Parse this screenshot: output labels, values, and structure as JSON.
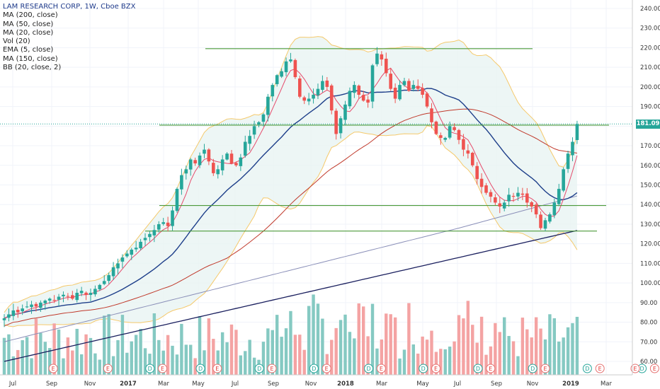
{
  "legend": {
    "title": "LAM RESEARCH CORP, 1W, Cboe BZX",
    "lines": [
      "MA (200, close)",
      "MA (50, close)",
      "MA (20, close)",
      "Vol (20)",
      "EMA (5, close)",
      "MA (150, close)",
      "BB (20, close, 2)"
    ]
  },
  "last_price_label": "181.09",
  "colors": {
    "up": "#26a69a",
    "down": "#ef5350",
    "up_vol": "#85c9c2",
    "down_vol": "#f4a3a3",
    "bb": "#f5c96b",
    "bb_fill": "#e8f4f2",
    "ma20": "#1e3f8a",
    "ma50": "#c0392b",
    "ma150": "#8a8fb8",
    "ma200": "#1a1f5e",
    "ema5": "#e64a6b",
    "hline": "#4c9a3a",
    "price_line": "#26a69a"
  },
  "chart_data": {
    "type": "candlestick",
    "title": "LAM RESEARCH CORP, 1W, Cboe BZX",
    "x_tick_labels": [
      "Jul",
      "Sep",
      "Nov",
      "2017",
      "Mar",
      "May",
      "Jul",
      "Sep",
      "Nov",
      "2018",
      "Mar",
      "May",
      "Jul",
      "Sep",
      "Nov",
      "2019",
      "Mar"
    ],
    "y_ticks": [
      60,
      70,
      80,
      90,
      100,
      110,
      120,
      130,
      140,
      150,
      160,
      170,
      180,
      190,
      200,
      210,
      220,
      230,
      240
    ],
    "y_tick_labels": [
      "60.00",
      "70.00",
      "80.00",
      "90.00",
      "100.00",
      "110.00",
      "120.00",
      "130.00",
      "140.00",
      "150.00",
      "160.00",
      "170.00",
      "180.00",
      "190.00",
      "200.00",
      "210.00",
      "220.00",
      "230.00",
      "240.00"
    ],
    "ylim": [
      56,
      242
    ],
    "last_price": 181.09,
    "horizontal_lines": [
      219.5,
      180.5,
      139.5,
      126.5
    ],
    "event_markers": [
      {
        "label": "E",
        "week": 6
      },
      {
        "label": "E",
        "week": 19
      },
      {
        "label": "D",
        "week": 29
      },
      {
        "label": "E",
        "week": 32
      },
      {
        "label": "D",
        "week": 41
      },
      {
        "label": "E",
        "week": 45
      },
      {
        "label": "D",
        "week": 55
      },
      {
        "label": "E",
        "week": 58
      },
      {
        "label": "D",
        "week": 68
      },
      {
        "label": "E",
        "week": 71
      },
      {
        "label": "D",
        "week": 81
      },
      {
        "label": "E",
        "week": 84
      },
      {
        "label": "D",
        "week": 94
      },
      {
        "label": "E",
        "week": 97
      },
      {
        "label": "D",
        "week": 107
      },
      {
        "label": "E",
        "week": 110
      },
      {
        "label": "D",
        "week": 120
      },
      {
        "label": "E",
        "week": 123
      },
      {
        "label": "D",
        "week": 133
      },
      {
        "label": "E",
        "week": 136
      },
      {
        "label": "D",
        "week": 146
      },
      {
        "label": "E",
        "week": 149
      },
      {
        "label": "E",
        "week": 162
      }
    ],
    "ohlc_close": [
      82,
      84,
      86,
      85,
      87,
      88,
      89,
      88,
      90,
      91,
      92,
      91,
      93,
      94,
      93,
      92,
      95,
      96,
      94,
      95,
      97,
      99,
      101,
      104,
      108,
      110,
      113,
      115,
      117,
      118,
      121,
      123,
      125,
      127,
      130,
      131,
      129,
      137,
      148,
      155,
      158,
      163,
      161,
      165,
      168,
      162,
      156,
      158,
      163,
      166,
      161,
      160,
      164,
      172,
      175,
      180,
      182,
      186,
      195,
      201,
      206,
      208,
      213,
      214,
      205,
      195,
      193,
      194,
      196,
      199,
      203,
      200,
      188,
      176,
      184,
      191,
      198,
      201,
      196,
      193,
      192,
      211,
      217,
      214,
      207,
      199,
      194,
      201,
      203,
      198,
      201,
      199,
      196,
      190,
      182,
      176,
      174,
      174,
      180,
      178,
      173,
      168,
      166,
      160,
      153,
      149,
      146,
      144,
      141,
      139,
      141,
      145,
      144,
      146,
      145,
      141,
      139,
      135,
      128,
      132,
      135,
      141,
      148,
      158,
      166,
      172,
      181
    ],
    "series": [
      {
        "name": "MA (200, close)"
      },
      {
        "name": "MA (50, close)"
      },
      {
        "name": "MA (20, close)"
      },
      {
        "name": "Vol (20)"
      },
      {
        "name": "EMA (5, close)"
      },
      {
        "name": "MA (150, close)"
      },
      {
        "name": "BB (20, close, 2)"
      }
    ]
  }
}
